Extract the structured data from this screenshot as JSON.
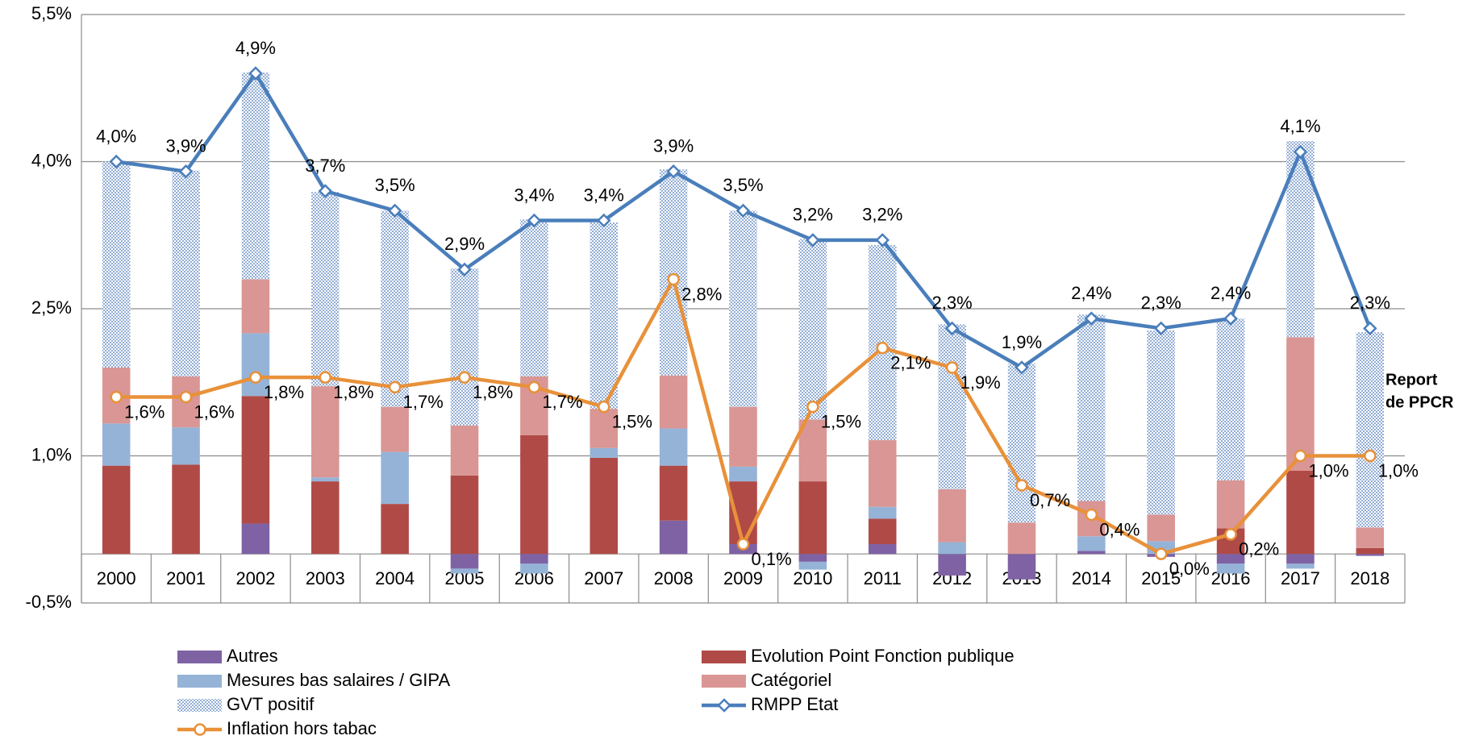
{
  "chart_data": {
    "type": "bar",
    "stacked": true,
    "categories": [
      "2000",
      "2001",
      "2002",
      "2003",
      "2004",
      "2005",
      "2006",
      "2007",
      "2008",
      "2009",
      "2010",
      "2011",
      "2012",
      "2013",
      "2014",
      "2015",
      "2016",
      "2017",
      "2018"
    ],
    "ylim": [
      -0.5,
      5.5
    ],
    "yticks": [
      {
        "value": -0.5,
        "label": "-0,5%"
      },
      {
        "value": 1.0,
        "label": "1,0%"
      },
      {
        "value": 2.5,
        "label": "2,5%"
      },
      {
        "value": 4.0,
        "label": "4,0%"
      },
      {
        "value": 5.5,
        "label": "5,5%"
      }
    ],
    "grid": true,
    "legend": "bottom",
    "annotations": [
      "Report",
      "de PPCR"
    ],
    "series": [
      {
        "name": "Autres",
        "color": "#7f62a4",
        "values": [
          0,
          0,
          0.31,
          0,
          0,
          -0.15,
          -0.1,
          0,
          0.34,
          0.1,
          -0.08,
          0.1,
          -0.22,
          -0.26,
          0.03,
          -0.03,
          -0.1,
          -0.1,
          -0.02
        ]
      },
      {
        "name": "Evolution Point Fonction publique",
        "color": "#b04a47",
        "values": [
          0.9,
          0.91,
          1.3,
          0.74,
          0.51,
          0.8,
          1.21,
          0.98,
          0.56,
          0.64,
          0.74,
          0.26,
          0,
          0,
          0,
          0,
          0.26,
          0.85,
          0.06
        ]
      },
      {
        "name": "Mesures bas salaires / GIPA",
        "color": "#95b3d7",
        "values": [
          0.43,
          0.38,
          0.64,
          0.04,
          0.53,
          -0.05,
          -0.1,
          0.1,
          0.38,
          0.15,
          -0.08,
          0.12,
          0.12,
          0,
          0.15,
          0.13,
          -0.1,
          -0.05,
          0
        ]
      },
      {
        "name": "Catégoriel",
        "color": "#d99694",
        "values": [
          0.57,
          0.52,
          0.55,
          0.93,
          0.46,
          0.51,
          0.6,
          0.4,
          0.54,
          0.61,
          0.63,
          0.68,
          0.54,
          0.32,
          0.36,
          0.27,
          0.49,
          1.36,
          0.21
        ]
      },
      {
        "name": "GVT positif",
        "color": "#6f93c8",
        "pattern": "dots",
        "values": [
          2.1,
          2.1,
          2.11,
          1.98,
          2.0,
          1.6,
          1.6,
          1.9,
          2.1,
          2.0,
          1.84,
          1.99,
          1.68,
          1.62,
          1.9,
          1.88,
          1.65,
          2.0,
          1.99
        ]
      },
      {
        "name": "RMPP Etat",
        "type": "line",
        "marker": "diamond",
        "color": "#4a7ebb",
        "values": [
          4.0,
          3.9,
          4.9,
          3.7,
          3.5,
          2.9,
          3.4,
          3.4,
          3.9,
          3.5,
          3.2,
          3.2,
          2.3,
          1.9,
          2.4,
          2.3,
          2.4,
          4.1,
          2.3
        ],
        "value_labels": [
          "4,0%",
          "3,9%",
          "4,9%",
          "3,7%",
          "3,5%",
          "2,9%",
          "3,4%",
          "3,4%",
          "3,9%",
          "3,5%",
          "3,2%",
          "3,2%",
          "2,3%",
          "1,9%",
          "2,4%",
          "2,3%",
          "2,4%",
          "4,1%",
          "2,3%"
        ]
      },
      {
        "name": "Inflation hors tabac",
        "type": "line",
        "marker": "circle",
        "color": "#e8913a",
        "values": [
          1.6,
          1.6,
          1.8,
          1.8,
          1.7,
          1.8,
          1.7,
          1.5,
          2.8,
          0.1,
          1.5,
          2.1,
          1.9,
          0.7,
          0.4,
          0.0,
          0.2,
          1.0,
          1.0
        ],
        "value_labels": [
          "1,6%",
          "1,6%",
          "1,8%",
          "1,8%",
          "1,7%",
          "1,8%",
          "1,7%",
          "1,5%",
          "2,8%",
          "0,1%",
          "1,5%",
          "2,1%",
          "1,9%",
          "0,7%",
          "0,4%",
          "0,0%",
          "0,2%",
          "1,0%",
          "1,0%"
        ]
      }
    ]
  }
}
